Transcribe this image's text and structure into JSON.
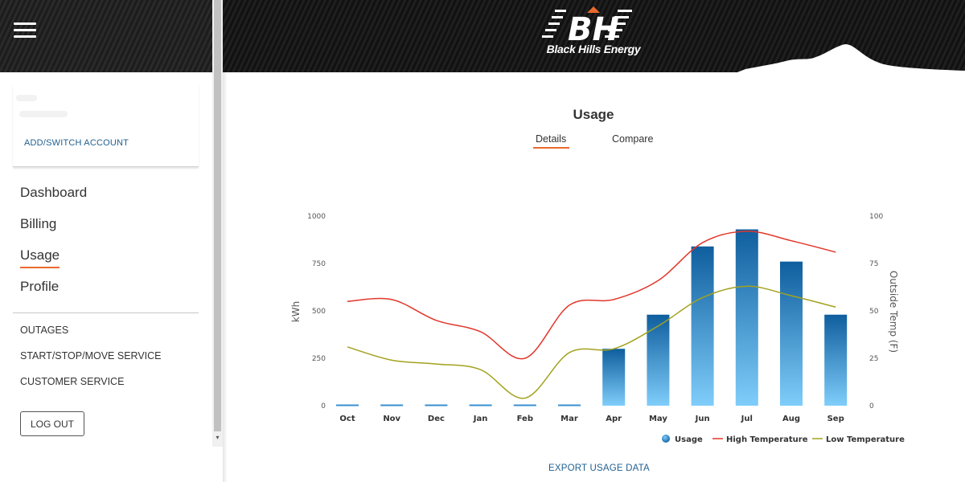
{
  "sidebar": {
    "add_switch_account": "ADD/SWITCH ACCOUNT",
    "main_nav": [
      {
        "label": "Dashboard",
        "active": false
      },
      {
        "label": "Billing",
        "active": false
      },
      {
        "label": "Usage",
        "active": true
      },
      {
        "label": "Profile",
        "active": false
      }
    ],
    "sub_nav": [
      {
        "label": "OUTAGES"
      },
      {
        "label": "START/STOP/MOVE SERVICE"
      },
      {
        "label": "CUSTOMER SERVICE"
      }
    ],
    "logout_label": "LOG OUT"
  },
  "header": {
    "logo_text": "Black Hills Energy",
    "logo_mark": "BH"
  },
  "page": {
    "title": "Usage",
    "tabs": [
      {
        "label": "Details",
        "active": true
      },
      {
        "label": "Compare",
        "active": false
      }
    ],
    "export_label": "EXPORT USAGE DATA"
  },
  "colors": {
    "accent": "#e96a2c",
    "link": "#1f5f8f",
    "bar_top": "#0f5e9e",
    "bar_bottom": "#7fcdfa",
    "high_temp": "#e2372b",
    "low_temp": "#a3a21f"
  },
  "chart_data": {
    "type": "bar",
    "categories": [
      "Oct",
      "Nov",
      "Dec",
      "Jan",
      "Feb",
      "Mar",
      "Apr",
      "May",
      "Jun",
      "Jul",
      "Aug",
      "Sep"
    ],
    "series": [
      {
        "name": "Usage",
        "type": "bar",
        "axis": "left",
        "values": [
          0,
          0,
          0,
          0,
          0,
          0,
          300,
          480,
          840,
          930,
          760,
          480
        ]
      },
      {
        "name": "High Temperature",
        "type": "line",
        "axis": "right",
        "values": [
          55,
          56,
          45,
          39,
          25,
          53,
          56,
          66,
          86,
          92,
          87,
          81
        ]
      },
      {
        "name": "Low Temperature",
        "type": "line",
        "axis": "right",
        "values": [
          31,
          24,
          22,
          19,
          4,
          28,
          30,
          42,
          57,
          63,
          58,
          52
        ]
      }
    ],
    "ylabel": "kWh",
    "ylabel_right": "Outside Temp (F)",
    "ylim": [
      0,
      1000
    ],
    "ylim_right": [
      0,
      100
    ],
    "yticks": [
      "0",
      "250",
      "500",
      "750",
      "1000"
    ],
    "yticks_right": [
      "0",
      "25",
      "50",
      "75",
      "100"
    ],
    "grid": false,
    "legend": "bottom-right"
  }
}
